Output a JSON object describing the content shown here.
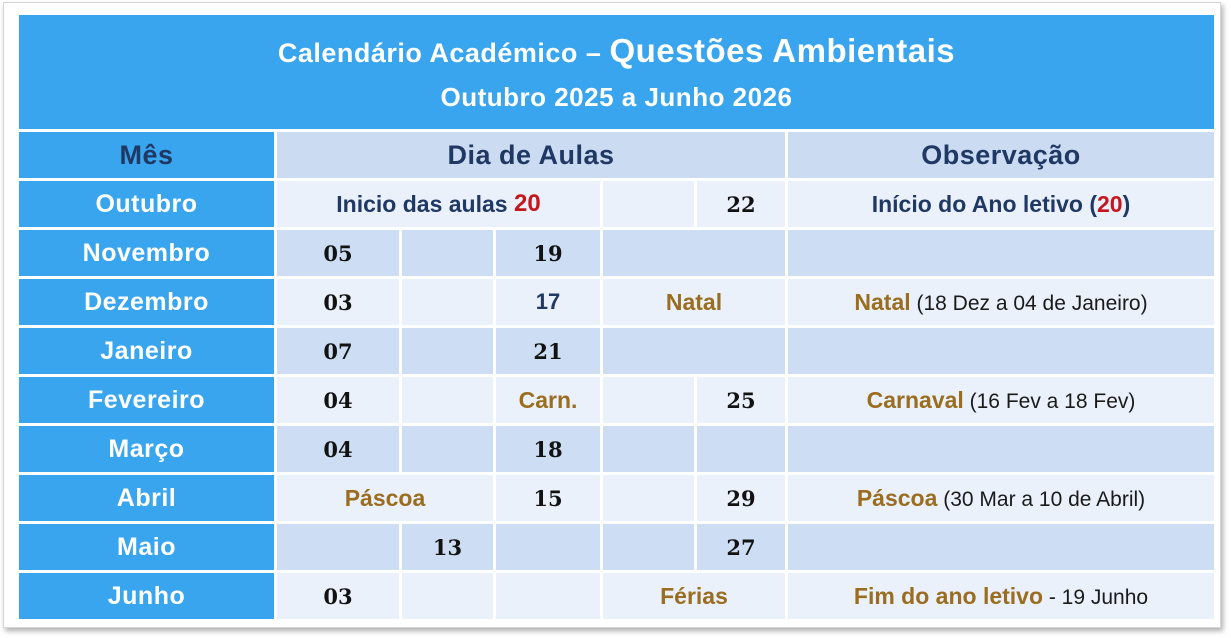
{
  "title": {
    "line1_regular": "Calendário Académico – ",
    "line1_emphasis": "Questões Ambientais",
    "line2": "Outubro 2025 a Junho 2026"
  },
  "headers": {
    "month": "Mês",
    "class_days": "Dia de Aulas",
    "observation": "Observação"
  },
  "colors": {
    "header_blue": "#38a5ee",
    "row_light": "#eaf1fb",
    "row_dark": "#cddef4",
    "navy_text": "#1f3864",
    "gold_text": "#9a6d1f",
    "red_text": "#c4161c",
    "day_number_text": "#121212"
  },
  "rows": [
    {
      "month": "Outubro",
      "start_label": "Inicio das aulas ",
      "start_day": "20",
      "e": "22",
      "obs_pre": "Início do Ano letivo (",
      "obs_day": "20",
      "obs_post": ")"
    },
    {
      "month": "Novembro",
      "a": "05",
      "c": "19"
    },
    {
      "month": "Dezembro",
      "a": "03",
      "c": "17",
      "holiday": "Natal",
      "obs_gold": "Natal",
      "obs_rest": " (18 Dez a 04 de Janeiro)"
    },
    {
      "month": "Janeiro",
      "a": "07",
      "c": "21"
    },
    {
      "month": "Fevereiro",
      "a": "04",
      "c": "Carn.",
      "e": "25",
      "obs_gold": "Carnaval",
      "obs_rest": " (16 Fev a 18 Fev)"
    },
    {
      "month": "Março",
      "a": "04",
      "c": "18"
    },
    {
      "month": "Abril",
      "holiday": "Páscoa",
      "c": "15",
      "e": "29",
      "obs_gold": "Páscoa",
      "obs_rest": " (30 Mar a 10 de Abril)"
    },
    {
      "month": "Maio",
      "b": "13",
      "e": "27"
    },
    {
      "month": "Junho",
      "a": "03",
      "holiday": "Férias",
      "obs_gold": "Fim do ano letivo",
      "obs_rest": " - 19 Junho"
    }
  ]
}
